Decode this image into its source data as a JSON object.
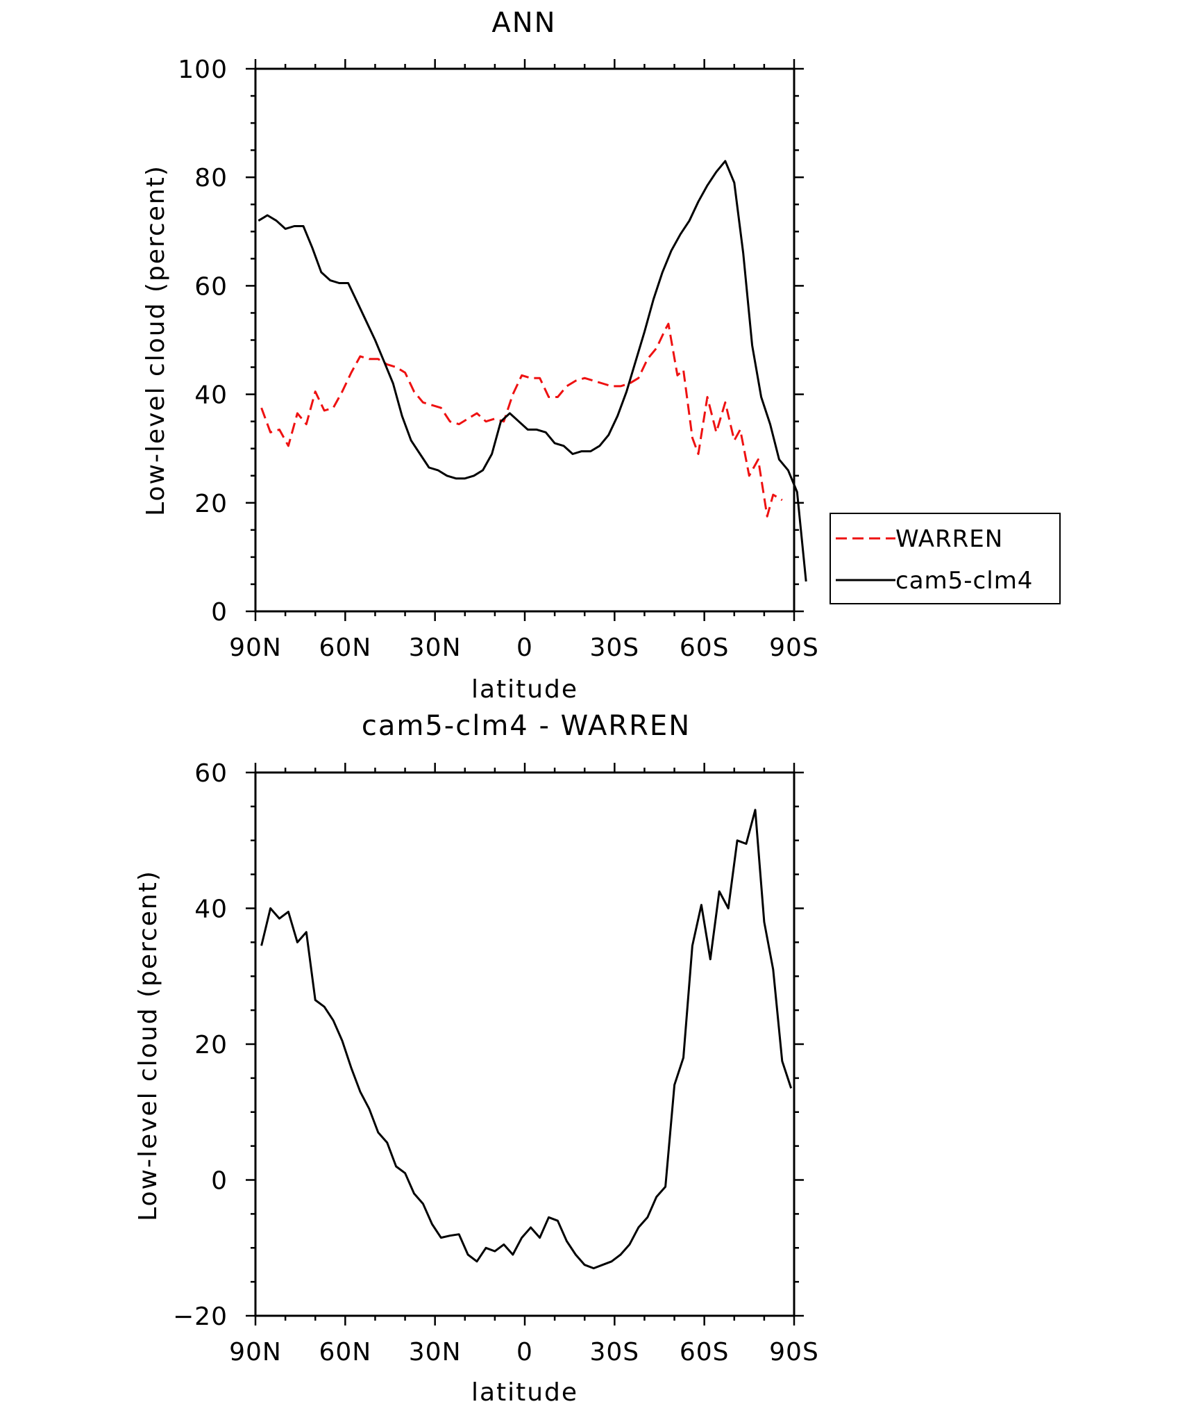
{
  "chart_data": [
    {
      "type": "line",
      "title": "ANN",
      "xlabel": "latitude",
      "ylabel": "Low-level cloud (percent)",
      "xlim": [
        90,
        -90
      ],
      "ylim": [
        0,
        100
      ],
      "xticks": [
        90,
        60,
        30,
        0,
        -30,
        -60,
        -90
      ],
      "xtick_labels": [
        "90N",
        "60N",
        "30N",
        "0",
        "30S",
        "60S",
        "90S"
      ],
      "yticks": [
        0,
        20,
        40,
        60,
        80,
        100
      ],
      "ytick_labels": [
        "0",
        "20",
        "40",
        "60",
        "80",
        "100"
      ],
      "legend": {
        "placement": "outside-right-bottom"
      },
      "series": [
        {
          "name": "WARREN",
          "color": "#ee1111",
          "style": "dashed",
          "points": [
            [
              88,
              37.5
            ],
            [
              85,
              33
            ],
            [
              82,
              33.5
            ],
            [
              79,
              30.5
            ],
            [
              76,
              36.5
            ],
            [
              73,
              34.5
            ],
            [
              70,
              40.5
            ],
            [
              67,
              37
            ],
            [
              64,
              37.5
            ],
            [
              61,
              40.5
            ],
            [
              58,
              44
            ],
            [
              55,
              47
            ],
            [
              52,
              46.5
            ],
            [
              49,
              46.5
            ],
            [
              46,
              45.5
            ],
            [
              43,
              45
            ],
            [
              40,
              44
            ],
            [
              37,
              40.5
            ],
            [
              34,
              38.5
            ],
            [
              31,
              38
            ],
            [
              28,
              37.5
            ],
            [
              25,
              35
            ],
            [
              22,
              34.5
            ],
            [
              19,
              35.5
            ],
            [
              16,
              36.5
            ],
            [
              13,
              35
            ],
            [
              10,
              35.5
            ],
            [
              7,
              35
            ],
            [
              4,
              40
            ],
            [
              1,
              43.5
            ],
            [
              -2,
              43
            ],
            [
              -5,
              43
            ],
            [
              -8,
              39.5
            ],
            [
              -11,
              39.5
            ],
            [
              -14,
              41.5
            ],
            [
              -17,
              42.5
            ],
            [
              -20,
              43
            ],
            [
              -23,
              42.5
            ],
            [
              -26,
              42
            ],
            [
              -29,
              41.5
            ],
            [
              -32,
              41.5
            ],
            [
              -35,
              42
            ],
            [
              -38,
              43
            ],
            [
              -41,
              46.5
            ],
            [
              -44,
              48.5
            ],
            [
              -47,
              52
            ],
            [
              -48,
              53
            ],
            [
              -51,
              43.5
            ],
            [
              -53,
              44.5
            ],
            [
              -56,
              32
            ],
            [
              -58,
              29
            ],
            [
              -61,
              39.5
            ],
            [
              -64,
              33
            ],
            [
              -67,
              38.5
            ],
            [
              -70,
              31.5
            ],
            [
              -72,
              33.5
            ],
            [
              -75,
              25
            ],
            [
              -78,
              28
            ],
            [
              -81,
              17.5
            ],
            [
              -83,
              21.5
            ],
            [
              -86,
              20.5
            ]
          ]
        },
        {
          "name": "cam5-clm4",
          "color": "#000000",
          "style": "solid",
          "points": [
            [
              89,
              72
            ],
            [
              86,
              73
            ],
            [
              83,
              72
            ],
            [
              80,
              70.5
            ],
            [
              77,
              71
            ],
            [
              74,
              71
            ],
            [
              71,
              67
            ],
            [
              68,
              62.5
            ],
            [
              65,
              61
            ],
            [
              62,
              60.5
            ],
            [
              59,
              60.5
            ],
            [
              56,
              57
            ],
            [
              53,
              53.5
            ],
            [
              50,
              50
            ],
            [
              47,
              46
            ],
            [
              44,
              42
            ],
            [
              41,
              36
            ],
            [
              38,
              31.5
            ],
            [
              35,
              29
            ],
            [
              32,
              26.5
            ],
            [
              29,
              26
            ],
            [
              26,
              25
            ],
            [
              23,
              24.5
            ],
            [
              20,
              24.5
            ],
            [
              17,
              25
            ],
            [
              14,
              26
            ],
            [
              11,
              29
            ],
            [
              8,
              35
            ],
            [
              5,
              36.5
            ],
            [
              2,
              35
            ],
            [
              -1,
              33.5
            ],
            [
              -4,
              33.5
            ],
            [
              -7,
              33
            ],
            [
              -10,
              31
            ],
            [
              -13,
              30.5
            ],
            [
              -16,
              29
            ],
            [
              -19,
              29.5
            ],
            [
              -22,
              29.5
            ],
            [
              -25,
              30.5
            ],
            [
              -28,
              32.5
            ],
            [
              -31,
              36
            ],
            [
              -34,
              40.5
            ],
            [
              -37,
              46
            ],
            [
              -40,
              51.5
            ],
            [
              -43,
              57.5
            ],
            [
              -46,
              62.5
            ],
            [
              -49,
              66.5
            ],
            [
              -52,
              69.5
            ],
            [
              -55,
              72
            ],
            [
              -58,
              75.5
            ],
            [
              -61,
              78.5
            ],
            [
              -64,
              81
            ],
            [
              -67,
              83
            ],
            [
              -70,
              79
            ],
            [
              -73,
              66
            ],
            [
              -76,
              49
            ],
            [
              -79,
              39.5
            ],
            [
              -82,
              34.5
            ],
            [
              -85,
              28
            ],
            [
              -88,
              26
            ],
            [
              -91,
              22
            ],
            [
              -94,
              5.5
            ]
          ]
        }
      ]
    },
    {
      "type": "line",
      "title": "cam5-clm4 - WARREN",
      "xlabel": "latitude",
      "ylabel": "Low-level cloud (percent)",
      "xlim": [
        90,
        -90
      ],
      "ylim": [
        -20,
        60
      ],
      "xticks": [
        90,
        60,
        30,
        0,
        -30,
        -60,
        -90
      ],
      "xtick_labels": [
        "90N",
        "60N",
        "30N",
        "0",
        "30S",
        "60S",
        "90S"
      ],
      "yticks": [
        -20,
        0,
        20,
        40,
        60
      ],
      "ytick_labels": [
        "−20",
        "0",
        "20",
        "40",
        "60"
      ],
      "series": [
        {
          "name": "cam5-clm4 - WARREN",
          "color": "#000000",
          "style": "solid",
          "points": [
            [
              88,
              34.5
            ],
            [
              85,
              40
            ],
            [
              82,
              38.5
            ],
            [
              79,
              39.5
            ],
            [
              76,
              35
            ],
            [
              73,
              36.5
            ],
            [
              70,
              26.5
            ],
            [
              67,
              25.5
            ],
            [
              64,
              23.5
            ],
            [
              61,
              20.5
            ],
            [
              58,
              16.5
            ],
            [
              55,
              13
            ],
            [
              52,
              10.5
            ],
            [
              49,
              7
            ],
            [
              46,
              5.5
            ],
            [
              43,
              2
            ],
            [
              40,
              1
            ],
            [
              37,
              -2
            ],
            [
              34,
              -3.5
            ],
            [
              31,
              -6.5
            ],
            [
              28,
              -8.5
            ],
            [
              25,
              -8.2
            ],
            [
              22,
              -8
            ],
            [
              19,
              -11
            ],
            [
              16,
              -12
            ],
            [
              13,
              -10
            ],
            [
              10,
              -10.5
            ],
            [
              7,
              -9.5
            ],
            [
              4,
              -11
            ],
            [
              1,
              -8.5
            ],
            [
              -2,
              -7
            ],
            [
              -5,
              -8.5
            ],
            [
              -8,
              -5.5
            ],
            [
              -11,
              -6
            ],
            [
              -14,
              -9
            ],
            [
              -17,
              -11
            ],
            [
              -20,
              -12.5
            ],
            [
              -23,
              -13
            ],
            [
              -26,
              -12.5
            ],
            [
              -29,
              -12
            ],
            [
              -32,
              -11
            ],
            [
              -35,
              -9.5
            ],
            [
              -38,
              -7
            ],
            [
              -41,
              -5.5
            ],
            [
              -44,
              -2.5
            ],
            [
              -47,
              -1
            ],
            [
              -50,
              14
            ],
            [
              -53,
              18
            ],
            [
              -56,
              34.5
            ],
            [
              -59,
              40.5
            ],
            [
              -62,
              32.5
            ],
            [
              -65,
              42.5
            ],
            [
              -68,
              40
            ],
            [
              -71,
              50
            ],
            [
              -74,
              49.5
            ],
            [
              -77,
              54.5
            ],
            [
              -80,
              38
            ],
            [
              -83,
              31
            ],
            [
              -86,
              17.5
            ],
            [
              -89,
              13.5
            ]
          ]
        }
      ]
    }
  ]
}
